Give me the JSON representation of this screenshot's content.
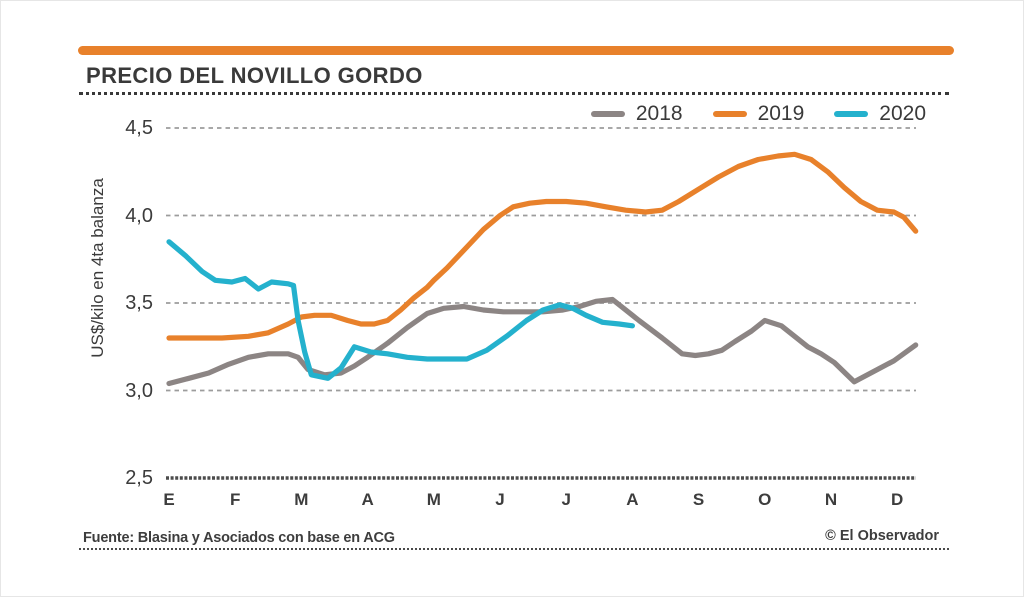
{
  "header": {
    "title": "PRECIO DEL NOVILLO GORDO"
  },
  "footer": {
    "source": "Fuente: Blasina y Asociados con base en ACG",
    "credit": "© El Observador"
  },
  "colors": {
    "accent_bar": "#E8812B",
    "grid": "#9C9C9C",
    "axis": "#4C4C4C",
    "text": "#3A3A3A"
  },
  "chart_data": {
    "type": "line",
    "title": "PRECIO DEL NOVILLO GORDO",
    "ylabel": "US$/kilo en 4ta balanza",
    "xlabel": "",
    "ylim": [
      2.5,
      4.5
    ],
    "grid": "horizontal-dashed",
    "legend_position": "top-right",
    "x_tick_labels": [
      "E",
      "F",
      "M",
      "A",
      "M",
      "J",
      "J",
      "A",
      "S",
      "O",
      "N",
      "D"
    ],
    "y_ticks": [
      {
        "value": 4.5,
        "label": "4,5"
      },
      {
        "value": 4.0,
        "label": "4,0"
      },
      {
        "value": 3.5,
        "label": "3,5"
      },
      {
        "value": 3.0,
        "label": "3,0"
      },
      {
        "value": 2.5,
        "label": "2,5"
      }
    ],
    "series": [
      {
        "name": "2018",
        "color": "#8C8584",
        "x": [
          0,
          0.3,
          0.6,
          0.9,
          1.2,
          1.5,
          1.8,
          1.95,
          2.1,
          2.35,
          2.6,
          2.8,
          3.0,
          3.3,
          3.6,
          3.9,
          4.15,
          4.45,
          4.75,
          5.05,
          5.35,
          5.65,
          5.95,
          6.2,
          6.45,
          6.7,
          7.1,
          7.45,
          7.75,
          7.95,
          8.15,
          8.35,
          8.55,
          8.8,
          9.0,
          9.25,
          9.45,
          9.65,
          9.85,
          10.05,
          10.35,
          10.65,
          10.95,
          11.28
        ],
        "y": [
          3.04,
          3.07,
          3.1,
          3.15,
          3.19,
          3.21,
          3.21,
          3.19,
          3.12,
          3.09,
          3.1,
          3.14,
          3.19,
          3.27,
          3.36,
          3.44,
          3.47,
          3.48,
          3.46,
          3.45,
          3.45,
          3.45,
          3.46,
          3.48,
          3.51,
          3.52,
          3.4,
          3.3,
          3.21,
          3.2,
          3.21,
          3.23,
          3.28,
          3.34,
          3.4,
          3.37,
          3.31,
          3.25,
          3.21,
          3.16,
          3.05,
          3.11,
          3.17,
          3.26
        ]
      },
      {
        "name": "2019",
        "color": "#E8812B",
        "x": [
          0,
          0.4,
          0.8,
          1.2,
          1.5,
          1.8,
          2.0,
          2.2,
          2.45,
          2.7,
          2.9,
          3.1,
          3.3,
          3.5,
          3.7,
          3.9,
          4.0,
          4.2,
          4.5,
          4.75,
          5.0,
          5.2,
          5.45,
          5.7,
          6.0,
          6.3,
          6.6,
          6.9,
          7.2,
          7.45,
          7.7,
          8.0,
          8.3,
          8.6,
          8.9,
          9.2,
          9.45,
          9.7,
          9.95,
          10.2,
          10.45,
          10.7,
          10.95,
          11.1,
          11.28
        ],
        "y": [
          3.3,
          3.3,
          3.3,
          3.31,
          3.33,
          3.38,
          3.42,
          3.43,
          3.43,
          3.4,
          3.38,
          3.38,
          3.4,
          3.46,
          3.53,
          3.59,
          3.63,
          3.7,
          3.82,
          3.92,
          4.0,
          4.05,
          4.07,
          4.08,
          4.08,
          4.07,
          4.05,
          4.03,
          4.02,
          4.03,
          4.08,
          4.15,
          4.22,
          4.28,
          4.32,
          4.34,
          4.35,
          4.32,
          4.25,
          4.16,
          4.08,
          4.03,
          4.02,
          3.99,
          3.91
        ]
      },
      {
        "name": "2020",
        "color": "#24B1CD",
        "x": [
          0,
          0.25,
          0.5,
          0.7,
          0.95,
          1.15,
          1.35,
          1.55,
          1.8,
          1.88,
          1.95,
          2.05,
          2.15,
          2.4,
          2.6,
          2.8,
          3.05,
          3.3,
          3.6,
          3.9,
          4.2,
          4.5,
          4.8,
          5.1,
          5.4,
          5.65,
          5.9,
          6.1,
          6.3,
          6.55,
          6.8,
          7.0
        ],
        "y": [
          3.85,
          3.77,
          3.68,
          3.63,
          3.62,
          3.64,
          3.58,
          3.62,
          3.61,
          3.6,
          3.4,
          3.22,
          3.09,
          3.07,
          3.13,
          3.25,
          3.22,
          3.21,
          3.19,
          3.18,
          3.18,
          3.18,
          3.23,
          3.31,
          3.4,
          3.46,
          3.49,
          3.47,
          3.43,
          3.39,
          3.38,
          3.37
        ]
      }
    ]
  }
}
